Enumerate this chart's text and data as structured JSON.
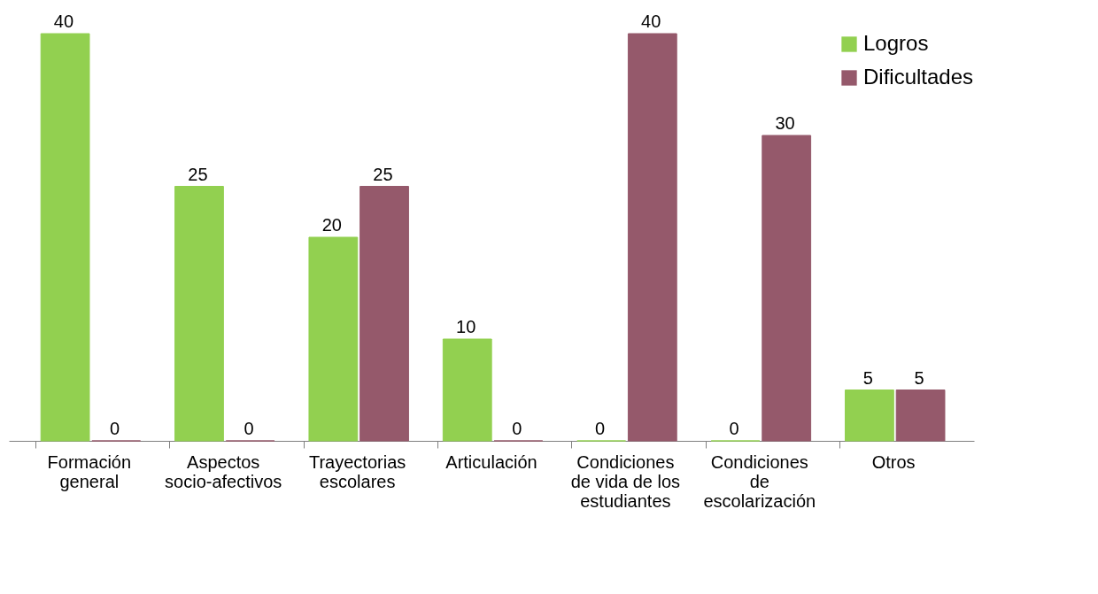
{
  "chart_data": {
    "type": "bar",
    "categories": [
      "Formación\ngeneral",
      "Aspectos\nsocio-afectivos",
      "Trayectorias\nescolares",
      "Articulación",
      "Condiciones\nde vida de los\nestudiantes",
      "Condiciones\nde\nescolarización",
      "Otros"
    ],
    "series": [
      {
        "name": "Logros",
        "color": "#92d050",
        "values": [
          40,
          25,
          20,
          10,
          0,
          0,
          5
        ]
      },
      {
        "name": "Dificultades",
        "color": "#95596b",
        "values": [
          0,
          0,
          25,
          0,
          40,
          30,
          5
        ]
      }
    ],
    "data_labels": true,
    "legend": "top right",
    "grid": false,
    "tick_labels": "x"
  }
}
